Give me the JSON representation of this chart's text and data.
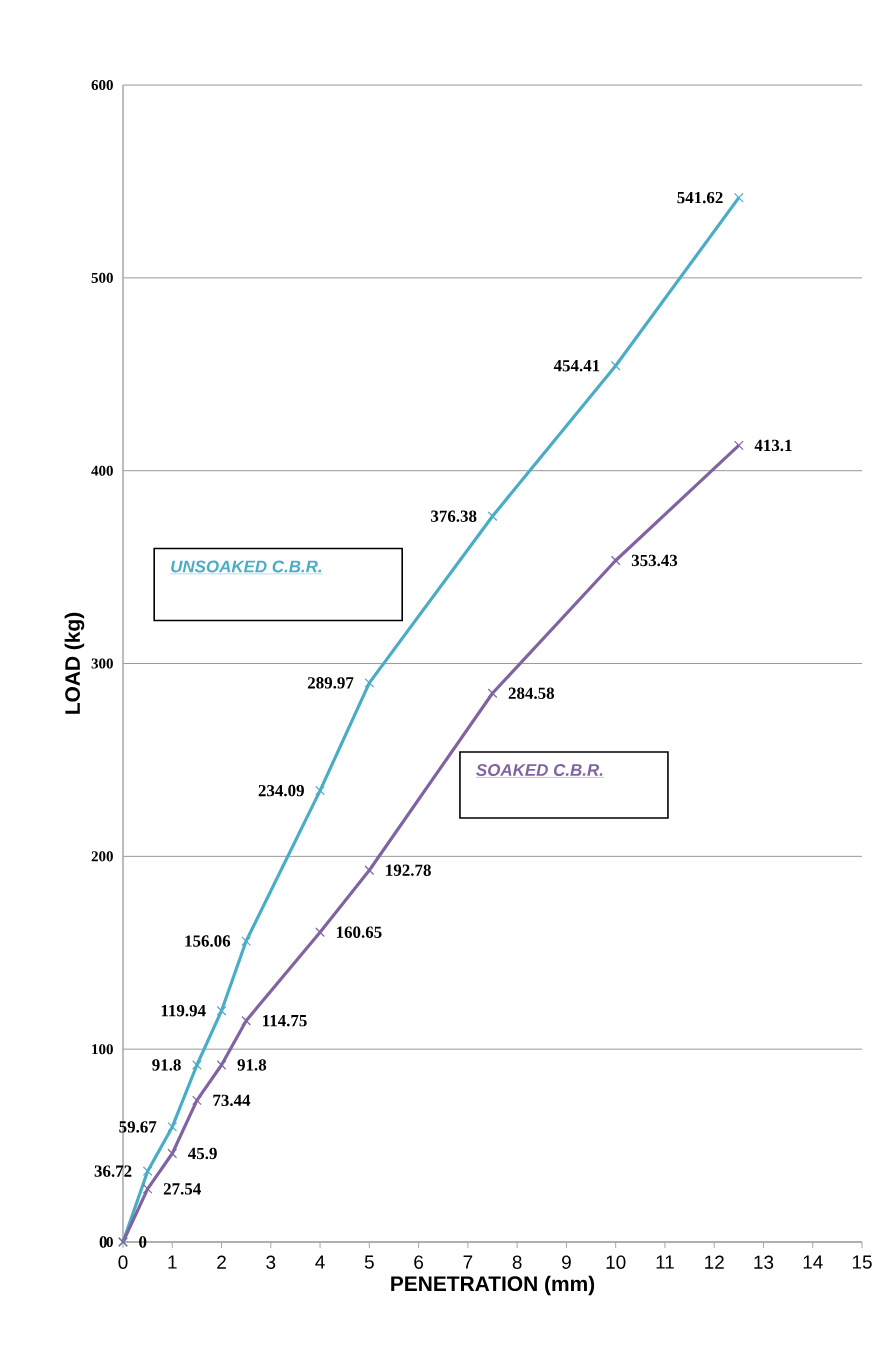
{
  "chart_data": {
    "type": "line",
    "xlabel": "PENETRATION (mm)",
    "ylabel": "LOAD (kg)",
    "x": [
      0,
      0.5,
      1,
      1.5,
      2,
      2.5,
      4,
      5,
      7.5,
      10,
      12.5
    ],
    "series": [
      {
        "name": "UNSOAKED C.B.R.",
        "color": "#4bacc6",
        "values": [
          0,
          36.72,
          59.67,
          91.8,
          119.94,
          156.06,
          234.09,
          289.97,
          376.38,
          454.41,
          541.62
        ]
      },
      {
        "name": "SOAKED C.B.R.",
        "color": "#8064a2",
        "values": [
          0,
          27.54,
          45.9,
          73.44,
          91.8,
          114.75,
          160.65,
          192.78,
          284.58,
          353.43,
          413.1
        ]
      }
    ],
    "xlim": [
      0,
      15
    ],
    "xticks": [
      0,
      1,
      2,
      3,
      4,
      5,
      6,
      7,
      8,
      9,
      10,
      11,
      12,
      13,
      14,
      15
    ],
    "ylim": [
      0,
      600
    ],
    "yticks": [
      0,
      100,
      200,
      300,
      400,
      500,
      600
    ],
    "grid": "y",
    "marker": "cross",
    "line_style": "solid",
    "data_labels": true,
    "legend": false
  }
}
